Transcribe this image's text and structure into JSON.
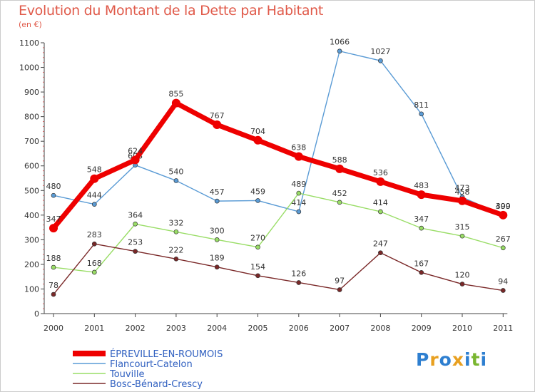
{
  "title": "Evolution du Montant de la Dette par Habitant",
  "subtitle": "(en €)",
  "logo": {
    "text": "Proxiti",
    "colors": [
      "#2e7fd0",
      "#e8a020",
      "#2e7fd0",
      "#e8a020",
      "#2e7fd0",
      "#7ab630",
      "#2e7fd0"
    ]
  },
  "chart_data": {
    "type": "line",
    "x": [
      "2000",
      "2001",
      "2002",
      "2003",
      "2004",
      "2005",
      "2006",
      "2007",
      "2008",
      "2009",
      "2010",
      "2011"
    ],
    "ylim": [
      0,
      1100
    ],
    "yticks": [
      0,
      100,
      200,
      300,
      400,
      500,
      600,
      700,
      800,
      900,
      1000,
      1100
    ],
    "grid": false,
    "legend_position": "bottom-left",
    "series": [
      {
        "name": "Flancourt-Catelon",
        "color": "#5a9bd5",
        "values": [
          480,
          444,
          603,
          540,
          457,
          459,
          414,
          1066,
          1027,
          811,
          473,
          399
        ]
      },
      {
        "name": "Touville",
        "color": "#99dd66",
        "values": [
          188,
          168,
          364,
          332,
          300,
          270,
          489,
          452,
          414,
          347,
          315,
          267
        ]
      },
      {
        "name": "Bosc-Bénard-Crescy",
        "color": "#7a2828",
        "values": [
          78,
          283,
          253,
          222,
          189,
          154,
          126,
          97,
          247,
          167,
          120,
          94
        ]
      },
      {
        "name": "ÉPREVILLE-EN-ROUMOIS",
        "color": "#ee0000",
        "values": [
          347,
          548,
          624,
          855,
          767,
          704,
          638,
          588,
          536,
          483,
          458,
          400
        ]
      }
    ]
  }
}
